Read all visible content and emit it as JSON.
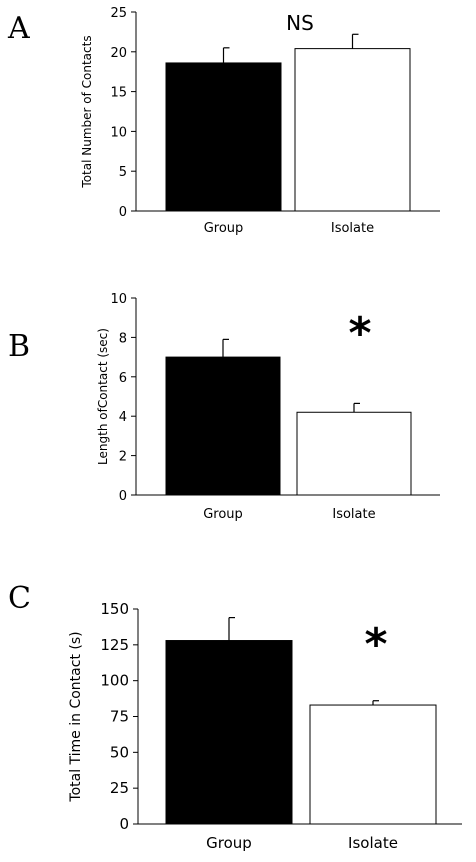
{
  "chart_data": [
    {
      "panel": "A",
      "type": "bar",
      "categories": [
        "Group",
        "Isolate"
      ],
      "values": [
        18.6,
        20.4
      ],
      "errors": [
        1.9,
        1.8
      ],
      "colors": [
        "#000000",
        "#ffffff"
      ],
      "ylabel": "Total Number of Contacts",
      "ylim": [
        0,
        25
      ],
      "yticks": [
        "0",
        "5",
        "10",
        "15",
        "20",
        "25"
      ],
      "annotation": "NS"
    },
    {
      "panel": "B",
      "type": "bar",
      "categories": [
        "Group",
        "Isolate"
      ],
      "values": [
        7.0,
        4.2
      ],
      "errors": [
        0.9,
        0.45
      ],
      "colors": [
        "#000000",
        "#ffffff"
      ],
      "ylabel": "Length ofContact (sec)",
      "ylim": [
        0,
        10
      ],
      "yticks": [
        "0",
        "2",
        "4",
        "6",
        "8",
        "10"
      ],
      "annotation": "*"
    },
    {
      "panel": "C",
      "type": "bar",
      "categories": [
        "Group",
        "Isolate"
      ],
      "values": [
        128,
        83
      ],
      "errors": [
        16,
        3
      ],
      "colors": [
        "#000000",
        "#ffffff"
      ],
      "ylabel": "Total Time in Contact (s)",
      "ylim": [
        0,
        150
      ],
      "yticks": [
        "0",
        "25",
        "50",
        "75",
        "100",
        "125",
        "150"
      ],
      "annotation": "*"
    }
  ]
}
